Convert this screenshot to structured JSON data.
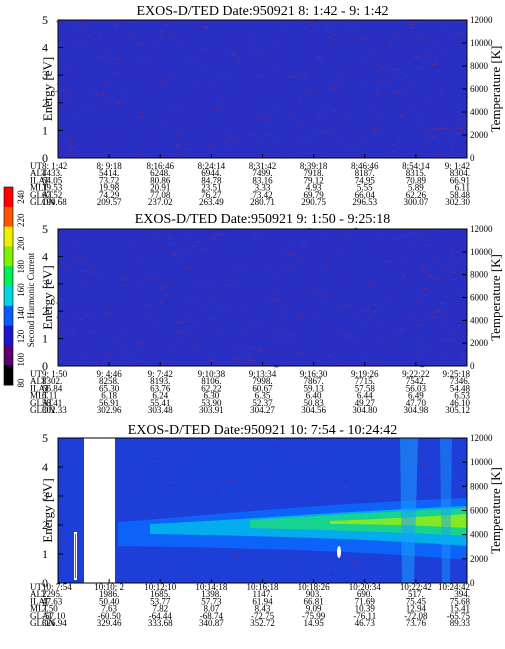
{
  "colorbar": {
    "label": "Second Harmonic Current",
    "ticks": [
      "240",
      "220",
      "200",
      "180",
      "160",
      "140",
      "120",
      "100",
      "80"
    ],
    "colors": [
      "#000000",
      "#5a0070",
      "#1d17c9",
      "#0a5bff",
      "#00d7e0",
      "#00ee55",
      "#7ff000",
      "#f0ef00",
      "#ff5500",
      "#ff0000"
    ]
  },
  "chart_data": [
    {
      "type": "heatmap",
      "title": "EXOS-D/TED   Date:950921  8: 1:42 - 9: 1:42",
      "ylabel": "Energy [eV]",
      "y2label": "Temperature [K]",
      "ylim": [
        0,
        5
      ],
      "y2lim": [
        0,
        12000
      ],
      "yticks": [
        "5",
        "4",
        "3",
        "2",
        "1",
        "0"
      ],
      "y2ticks": [
        "12000",
        "10000",
        "8000",
        "6000",
        "4000",
        "2000",
        "0"
      ],
      "background": "#2a2fc3",
      "row_labels": [
        "UT",
        "ALT",
        "ILAT",
        "MLT",
        "GLAT",
        "GLON"
      ],
      "columns": [
        [
          "8: 1:42",
          "4433.",
          "64.05",
          "19.53",
          "67.52",
          "190.68"
        ],
        [
          "8: 9:18",
          "5414.",
          "73.72",
          "19.98",
          "74.29",
          "209.57"
        ],
        [
          "8:16:46",
          "6248.",
          "80.86",
          "20.91",
          "77.08",
          "237.02"
        ],
        [
          "8:24:14",
          "6944.",
          "84.78",
          "23.51",
          "76.27",
          "263.49"
        ],
        [
          "8:31:42",
          "7499.",
          "83.16",
          "3.33",
          "73.42",
          "280.71"
        ],
        [
          "8:39:18",
          "7918.",
          "79.12",
          "4.93",
          "69.79",
          "290.75"
        ],
        [
          "8:46:46",
          "8187.",
          "74.95",
          "5.55",
          "66.04",
          "296.53"
        ],
        [
          "8:54:14",
          "8315.",
          "70.89",
          "5.89",
          "62.26",
          "300.07"
        ],
        [
          "9: 1:42",
          "8304.",
          "66.91",
          "6.11",
          "58.48",
          "302.30"
        ]
      ]
    },
    {
      "type": "heatmap",
      "title": "EXOS-D/TED   Date:950921  9: 1:50 - 9:25:18",
      "ylabel": "Energy [eV]",
      "y2label": "Temperature [K]",
      "ylim": [
        0,
        5
      ],
      "y2lim": [
        0,
        12000
      ],
      "yticks": [
        "5",
        "4",
        "3",
        "2",
        "1",
        "0"
      ],
      "y2ticks": [
        "12000",
        "10000",
        "8000",
        "6000",
        "4000",
        "2000",
        "0"
      ],
      "background": "#2a2fc3",
      "row_labels": [
        "UT",
        "ALT",
        "ILAT",
        "MLT",
        "GLAT",
        "GLON"
      ],
      "columns": [
        [
          "9: 1:50",
          "8302.",
          "66.84",
          "6.11",
          "58.41",
          "302.33"
        ],
        [
          "9: 4:46",
          "8258.",
          "65.30",
          "6.18",
          "56.91",
          "302.96"
        ],
        [
          "9: 7:42",
          "8193.",
          "63.76",
          "6.24",
          "55.41",
          "303.48"
        ],
        [
          "9:10:38",
          "8106.",
          "62.22",
          "6.30",
          "53.90",
          "303.91"
        ],
        [
          "9:13:34",
          "7998.",
          "60.67",
          "6.35",
          "52.37",
          "304.27"
        ],
        [
          "9:16:30",
          "7867.",
          "59.13",
          "6.40",
          "50.83",
          "304.56"
        ],
        [
          "9:19:26",
          "7715.",
          "57.58",
          "6.44",
          "49.27",
          "304.80"
        ],
        [
          "9:22:22",
          "7542.",
          "56.03",
          "6.49",
          "47.70",
          "304.98"
        ],
        [
          "9:25:18",
          "7346.",
          "54.48",
          "6.53",
          "46.10",
          "305.12"
        ]
      ]
    },
    {
      "type": "heatmap",
      "title": "EXOS-D/TED   Date:950921  10: 7:54 - 10:24:42",
      "ylabel": "Energy [eV]",
      "y2label": "Temperature [K]",
      "ylim": [
        0,
        5
      ],
      "y2lim": [
        0,
        12000
      ],
      "yticks": [
        "5",
        "4",
        "3",
        "2",
        "1",
        "0"
      ],
      "y2ticks": [
        "12000",
        "10000",
        "8000",
        "6000",
        "4000",
        "2000",
        "0"
      ],
      "background": "#1d3fd8",
      "row_labels": [
        "UT",
        "ALT",
        "ILAT",
        "MLT",
        "GLAT",
        "GLON"
      ],
      "columns": [
        [
          "10: 7:54",
          "2295.",
          "47.63",
          "7.50",
          "-57.10",
          "326.94"
        ],
        [
          "10:10: 2",
          "1986.",
          "50.40",
          "7.63",
          "-60.50",
          "329.46"
        ],
        [
          "10:12:10",
          "1685.",
          "53.77",
          "7.82",
          "-64.44",
          "333.68"
        ],
        [
          "10:14:18",
          "1398.",
          "57.73",
          "8.07",
          "-68.74",
          "340.87"
        ],
        [
          "10:16:18",
          "1147.",
          "61.94",
          "8.43",
          "-72.75",
          "352.72"
        ],
        [
          "10:18:26",
          "903.",
          "66.81",
          "9.09",
          "-75.99",
          "14.95"
        ],
        [
          "10:20:34",
          "690.",
          "71.69",
          "10.39",
          "-76.11",
          "46.73"
        ],
        [
          "10:22:42",
          "517.",
          "75.45",
          "12.94",
          "-72.08",
          "73.76"
        ],
        [
          "10:24:42",
          "394.",
          "75.68",
          "15.41",
          "-65.75",
          "89.33"
        ]
      ]
    }
  ]
}
